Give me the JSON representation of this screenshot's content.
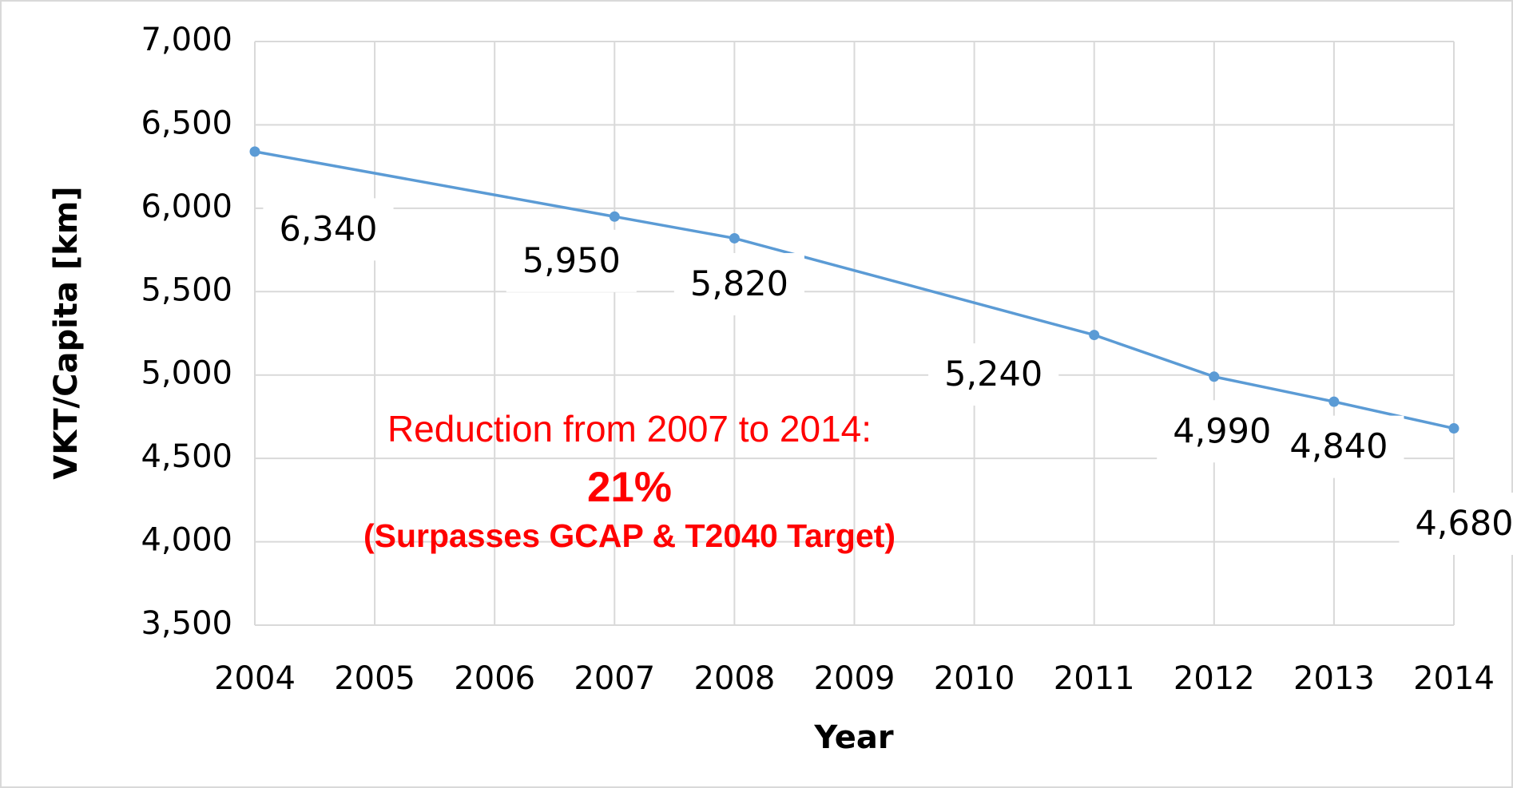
{
  "chart_data": {
    "type": "line",
    "x_label": "Year",
    "y_label": "VKT/Capita [km]",
    "x": [
      2004,
      2007,
      2008,
      2011,
      2012,
      2013,
      2014
    ],
    "series": [
      {
        "name": "VKT/Capita",
        "color": "#5b9bd5",
        "values": [
          6340,
          5950,
          5820,
          5240,
          4990,
          4840,
          4680
        ],
        "value_labels": [
          "6,340",
          "5,950",
          "5,820",
          "5,240",
          "4,990",
          "4,840",
          "4,680"
        ]
      }
    ],
    "xlim": [
      2004,
      2014
    ],
    "xticks": [
      2004,
      2005,
      2006,
      2007,
      2008,
      2009,
      2010,
      2011,
      2012,
      2013,
      2014
    ],
    "ylim": [
      3500,
      7000
    ],
    "yticks": [
      {
        "value": 3500,
        "label": "3,500"
      },
      {
        "value": 4000,
        "label": "4,000"
      },
      {
        "value": 4500,
        "label": "4,500"
      },
      {
        "value": 5000,
        "label": "5,000"
      },
      {
        "value": 5500,
        "label": "5,500"
      },
      {
        "value": 6000,
        "label": "6,000"
      },
      {
        "value": 6500,
        "label": "6,500"
      },
      {
        "value": 7000,
        "label": "7,000"
      }
    ],
    "grid": true,
    "annotations": [
      "Reduction from 2007 to 2014:",
      "21%",
      "(Surpasses GCAP & T2040 Target)"
    ]
  }
}
